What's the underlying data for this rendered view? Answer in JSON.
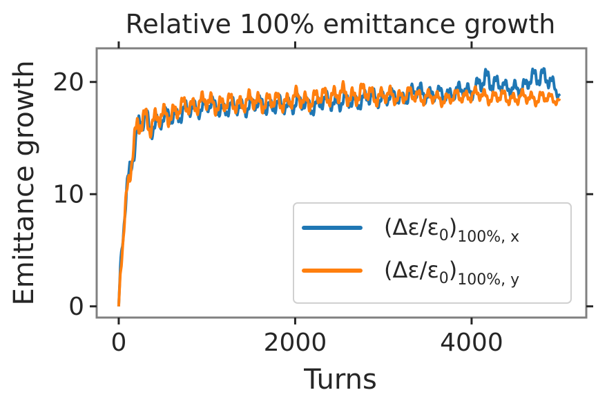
{
  "chart_data": {
    "type": "line",
    "title": "Relative 100% emittance growth",
    "xlabel": "Turns",
    "ylabel": "Emittance growth",
    "xlim": [
      -250,
      5300
    ],
    "ylim": [
      -1,
      23
    ],
    "xticks": [
      0,
      2000,
      4000
    ],
    "xtick_labels": [
      "0",
      "2000",
      "4000"
    ],
    "yticks": [
      0,
      10,
      20
    ],
    "ytick_labels": [
      "0",
      "10",
      "20"
    ],
    "grid": false,
    "legend_position": "lower-right",
    "series": [
      {
        "name": "(Δε/ε0)100%,x",
        "legend_main": "(Δε/ε",
        "legend_sub0": "0",
        "legend_close": ")",
        "legend_sub": "100%, x",
        "color": "#1f77b4",
        "x": [
          0,
          20,
          40,
          60,
          80,
          100,
          130,
          160,
          200,
          250,
          300,
          350,
          400,
          500,
          600,
          700,
          800,
          900,
          1000,
          1200,
          1400,
          1600,
          1800,
          2000,
          2200,
          2400,
          2600,
          2800,
          3000,
          3200,
          3400,
          3600,
          3800,
          4000,
          4100,
          4200,
          4300,
          4400,
          4500,
          4600,
          4700,
          4800,
          4900,
          5000
        ],
        "y": [
          0,
          3.5,
          5.5,
          7.5,
          9.5,
          11.0,
          12.5,
          13.8,
          15.0,
          16.2,
          16.8,
          16.0,
          16.3,
          16.6,
          17.0,
          17.2,
          17.5,
          17.7,
          17.9,
          17.6,
          17.8,
          18.0,
          17.8,
          18.1,
          17.9,
          18.3,
          18.2,
          18.5,
          18.6,
          18.6,
          19.2,
          18.8,
          19.1,
          19.3,
          19.8,
          20.2,
          20.0,
          19.2,
          19.6,
          19.5,
          20.4,
          20.8,
          19.8,
          18.8
        ],
        "amp": [
          0,
          0.6,
          0.8,
          1.0,
          1.2,
          1.3,
          1.3,
          1.3,
          1.4,
          1.4,
          1.2,
          1.1,
          1.1,
          1.0,
          1.0,
          1.0,
          0.9,
          0.9,
          0.9,
          0.9,
          0.9,
          0.9,
          0.9,
          0.9,
          0.9,
          0.9,
          0.9,
          0.9,
          0.8,
          0.8,
          0.9,
          0.8,
          0.8,
          0.8,
          1.1,
          1.2,
          0.9,
          0.8,
          0.9,
          0.8,
          1.0,
          1.0,
          0.9,
          0.4
        ]
      },
      {
        "name": "(Δε/ε0)100%,y",
        "legend_main": "(Δε/ε",
        "legend_sub0": "0",
        "legend_close": ")",
        "legend_sub": "100%, y",
        "color": "#ff7f0e",
        "x": [
          0,
          20,
          40,
          60,
          80,
          100,
          130,
          160,
          200,
          250,
          300,
          350,
          400,
          500,
          600,
          700,
          800,
          900,
          1000,
          1200,
          1400,
          1600,
          1800,
          2000,
          2200,
          2400,
          2600,
          2800,
          3000,
          3200,
          3400,
          3600,
          3800,
          4000,
          4200,
          4400,
          4600,
          4800,
          5000
        ],
        "y": [
          0,
          3.3,
          5.2,
          7.2,
          9.2,
          10.8,
          12.3,
          13.8,
          15.2,
          16.4,
          17.0,
          16.3,
          16.5,
          16.9,
          17.3,
          17.6,
          17.9,
          18.1,
          18.2,
          18.0,
          18.2,
          18.3,
          18.2,
          18.5,
          18.4,
          18.9,
          18.8,
          19.0,
          18.7,
          18.8,
          18.8,
          18.5,
          18.6,
          18.9,
          18.7,
          18.6,
          18.6,
          18.6,
          18.4
        ],
        "amp": [
          0,
          0.6,
          0.8,
          1.0,
          1.2,
          1.3,
          1.3,
          1.4,
          1.5,
          1.5,
          1.3,
          1.2,
          1.2,
          1.1,
          1.1,
          1.0,
          1.0,
          1.0,
          1.0,
          1.0,
          1.0,
          1.0,
          1.0,
          1.0,
          1.0,
          1.0,
          1.1,
          1.0,
          0.9,
          0.8,
          0.8,
          0.7,
          0.7,
          0.7,
          0.7,
          0.7,
          0.7,
          0.7,
          0.4
        ]
      }
    ]
  }
}
